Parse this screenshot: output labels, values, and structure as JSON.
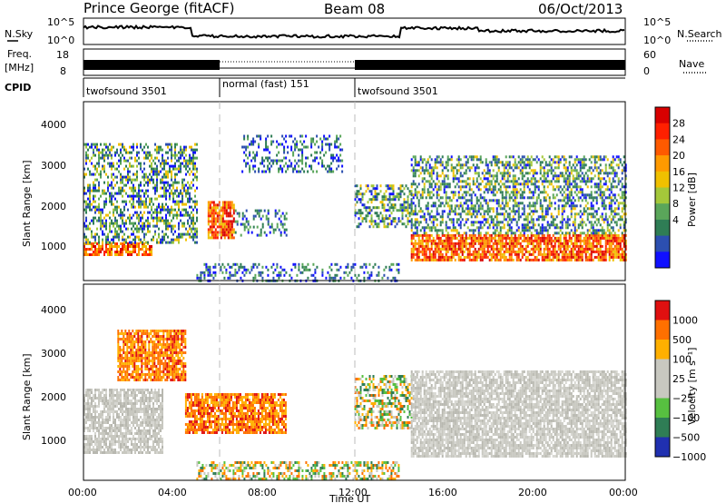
{
  "header": {
    "radar": "Prince George (fitACF)",
    "beam": "Beam 08",
    "date": "06/Oct/2013"
  },
  "strip_labels": {
    "nsky": "N.Sky",
    "nsky_ticks": [
      "10^5",
      "10^0"
    ],
    "nsearch": "N.Search",
    "freq": "Freq.",
    "freq_unit": "[MHz]",
    "freq_ticks": [
      "18",
      "8"
    ],
    "nave": "Nave",
    "nave_ticks": [
      "60",
      "0"
    ],
    "cpid": "CPID"
  },
  "cpid_segments": [
    {
      "label": "twofsound 3501",
      "start": 0,
      "end": 6
    },
    {
      "label": "normal (fast) 151",
      "start": 6,
      "end": 12
    },
    {
      "label": "twofsound 3501",
      "start": 12,
      "end": 24
    }
  ],
  "power_panel": {
    "ylabel": "Slant Range [km]",
    "yticks": [
      "4000",
      "3000",
      "2000",
      "1000"
    ],
    "colorbar_label": "Power [dB]",
    "colorbar_ticks": [
      "28",
      "24",
      "20",
      "16",
      "12",
      "8",
      "4"
    ]
  },
  "velocity_panel": {
    "ylabel": "Slant Range [km]",
    "yticks": [
      "4000",
      "3000",
      "2000",
      "1000"
    ],
    "colorbar_label": "Velocity [m s⁻¹]",
    "colorbar_ticks": [
      "1000",
      "500",
      "100",
      "25",
      "−25",
      "−100",
      "−500",
      "−1000"
    ]
  },
  "xaxis": {
    "label": "Time UT",
    "ticks": [
      "00:00",
      "04:00",
      "08:00",
      "12:00",
      "16:00",
      "20:00",
      "00:00"
    ]
  },
  "colors": {
    "power_scale": [
      "#1010ff",
      "#2c4fb0",
      "#2f7d55",
      "#5aa65a",
      "#a4c83a",
      "#f0c000",
      "#ff9a00",
      "#ff5a00",
      "#ff2000",
      "#d80000"
    ],
    "velocity_scale": [
      "#2030b0",
      "#2f7d55",
      "#57c040",
      "#c8c8c0",
      "#c8c8c0",
      "#ffb000",
      "#ff7000",
      "#e01010"
    ]
  },
  "chart_data": {
    "type": "heatmap",
    "x_range_hours": [
      0,
      24
    ],
    "y_range_km": [
      180,
      4500
    ],
    "power_regions": [
      {
        "t0": 0.0,
        "t1": 3.0,
        "r0": 800,
        "r1": 1100,
        "level": "high"
      },
      {
        "t0": 0.0,
        "t1": 5.0,
        "r0": 1100,
        "r1": 3500,
        "level": "mixed"
      },
      {
        "t0": 5.5,
        "t1": 6.7,
        "r0": 1200,
        "r1": 2100,
        "level": "high"
      },
      {
        "t0": 6.7,
        "t1": 9.0,
        "r0": 1300,
        "r1": 1900,
        "level": "low"
      },
      {
        "t0": 7.0,
        "t1": 11.5,
        "r0": 2800,
        "r1": 3700,
        "level": "low"
      },
      {
        "t0": 12.0,
        "t1": 14.5,
        "r0": 1500,
        "r1": 2500,
        "level": "mixed"
      },
      {
        "t0": 14.5,
        "t1": 24.0,
        "r0": 700,
        "r1": 1300,
        "level": "high"
      },
      {
        "t0": 14.5,
        "t1": 24.0,
        "r0": 1300,
        "r1": 3200,
        "level": "mixed"
      },
      {
        "t0": 5.0,
        "t1": 14.0,
        "r0": 180,
        "r1": 600,
        "level": "low"
      }
    ],
    "velocity_regions": [
      {
        "t0": 0.0,
        "t1": 3.5,
        "r0": 800,
        "r1": 2200,
        "level": "ground"
      },
      {
        "t0": 1.5,
        "t1": 4.5,
        "r0": 2400,
        "r1": 3500,
        "level": "negative"
      },
      {
        "t0": 4.5,
        "t1": 9.0,
        "r0": 1200,
        "r1": 2100,
        "level": "negative"
      },
      {
        "t0": 12.0,
        "t1": 14.5,
        "r0": 1300,
        "r1": 2500,
        "level": "mixed"
      },
      {
        "t0": 14.5,
        "t1": 24.0,
        "r0": 700,
        "r1": 2600,
        "level": "ground"
      },
      {
        "t0": 5.0,
        "t1": 14.0,
        "r0": 180,
        "r1": 600,
        "level": "mixed"
      }
    ]
  }
}
